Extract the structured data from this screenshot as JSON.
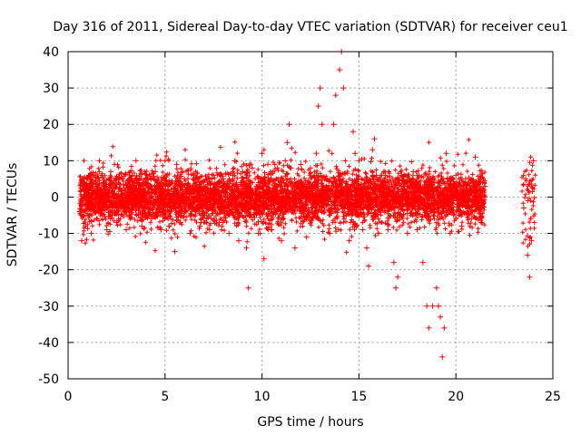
{
  "chart_data": {
    "type": "scatter",
    "title": "Day 316 of 2011, Sidereal Day-to-day VTEC variation (SDTVAR) for receiver ceu1",
    "xlabel": "GPS time / hours",
    "ylabel": "SDTVAR / TECUs",
    "xlim": [
      0,
      25
    ],
    "ylim": [
      -50,
      40
    ],
    "xticks": [
      "0",
      "5",
      "10",
      "15",
      "20",
      "25"
    ],
    "yticks": [
      "-50",
      "-40",
      "-30",
      "-20",
      "-10",
      "0",
      "10",
      "20",
      "30",
      "40"
    ],
    "grid": true,
    "marker": "+",
    "color": "#ff0000",
    "series": [
      {
        "name": "SDTVAR",
        "description_note": "dense cloud of '+' markers; representative points read from the figure",
        "points": [
          [
            0.6,
            -4
          ],
          [
            0.7,
            -12
          ],
          [
            0.8,
            5
          ],
          [
            0.9,
            -8
          ],
          [
            1.0,
            3
          ],
          [
            1.2,
            -10
          ],
          [
            1.3,
            6
          ],
          [
            1.5,
            -6
          ],
          [
            1.8,
            4
          ],
          [
            2.0,
            -9
          ],
          [
            2.2,
            7
          ],
          [
            2.5,
            -7
          ],
          [
            2.8,
            5
          ],
          [
            3.0,
            -9
          ],
          [
            3.3,
            6
          ],
          [
            3.5,
            10
          ],
          [
            3.8,
            -8
          ],
          [
            4.0,
            5
          ],
          [
            4.3,
            -6
          ],
          [
            4.5,
            7
          ],
          [
            4.8,
            -9
          ],
          [
            5.0,
            10
          ],
          [
            5.2,
            -8
          ],
          [
            5.5,
            -15
          ],
          [
            5.6,
            9
          ],
          [
            5.8,
            -7
          ],
          [
            6.0,
            5
          ],
          [
            6.3,
            -10
          ],
          [
            6.5,
            6
          ],
          [
            6.8,
            -8
          ],
          [
            7.0,
            4
          ],
          [
            7.3,
            -9
          ],
          [
            7.5,
            6
          ],
          [
            7.8,
            -7
          ],
          [
            8.0,
            5
          ],
          [
            8.3,
            -10
          ],
          [
            8.5,
            6
          ],
          [
            8.6,
            10
          ],
          [
            8.8,
            -12
          ],
          [
            9.0,
            7
          ],
          [
            9.2,
            -14
          ],
          [
            9.3,
            -25
          ],
          [
            9.5,
            8
          ],
          [
            9.8,
            -10
          ],
          [
            10.0,
            12
          ],
          [
            10.1,
            -17
          ],
          [
            10.3,
            9
          ],
          [
            10.5,
            -9
          ],
          [
            10.8,
            8
          ],
          [
            11.0,
            -12
          ],
          [
            11.2,
            10
          ],
          [
            11.3,
            15
          ],
          [
            11.4,
            20
          ],
          [
            11.5,
            8
          ],
          [
            11.7,
            -14
          ],
          [
            12.0,
            9
          ],
          [
            12.3,
            -11
          ],
          [
            12.5,
            8
          ],
          [
            12.8,
            12
          ],
          [
            12.9,
            25
          ],
          [
            13.0,
            30
          ],
          [
            13.1,
            20
          ],
          [
            13.3,
            5
          ],
          [
            13.5,
            -10
          ],
          [
            13.7,
            20
          ],
          [
            13.8,
            28
          ],
          [
            14.0,
            35
          ],
          [
            14.1,
            40
          ],
          [
            14.2,
            30
          ],
          [
            14.3,
            10
          ],
          [
            14.5,
            -12
          ],
          [
            14.7,
            18
          ],
          [
            14.8,
            12
          ],
          [
            15.0,
            10
          ],
          [
            15.2,
            -9
          ],
          [
            15.4,
            -14
          ],
          [
            15.5,
            -19
          ],
          [
            15.7,
            13
          ],
          [
            15.8,
            16
          ],
          [
            15.9,
            6
          ],
          [
            16.0,
            -10
          ],
          [
            16.3,
            7
          ],
          [
            16.5,
            -9
          ],
          [
            16.8,
            -18
          ],
          [
            16.9,
            -25
          ],
          [
            17.0,
            -22
          ],
          [
            17.2,
            6
          ],
          [
            17.5,
            -10
          ],
          [
            17.8,
            7
          ],
          [
            18.0,
            -9
          ],
          [
            18.3,
            -18
          ],
          [
            18.5,
            -30
          ],
          [
            18.6,
            -36
          ],
          [
            18.8,
            -30
          ],
          [
            19.0,
            -25
          ],
          [
            19.1,
            -30
          ],
          [
            19.2,
            -33
          ],
          [
            19.3,
            -44
          ],
          [
            19.4,
            -36
          ],
          [
            19.5,
            12
          ],
          [
            19.7,
            -10
          ],
          [
            20.0,
            6
          ],
          [
            20.3,
            -8
          ],
          [
            20.5,
            5
          ],
          [
            20.8,
            -6
          ],
          [
            21.0,
            11
          ],
          [
            21.3,
            -7
          ],
          [
            21.5,
            3
          ],
          [
            23.5,
            -3
          ],
          [
            23.6,
            5
          ],
          [
            23.7,
            -16
          ],
          [
            23.8,
            -22
          ],
          [
            23.9,
            -12
          ],
          [
            24.0,
            10
          ]
        ]
      }
    ]
  }
}
